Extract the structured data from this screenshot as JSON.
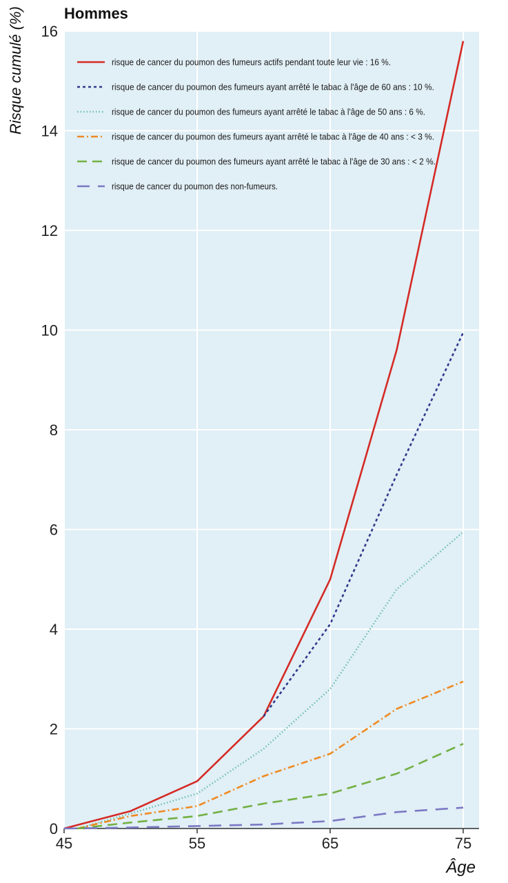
{
  "chart_data": {
    "type": "line",
    "title": "Hommes",
    "xlabel": "Âge",
    "ylabel": "Risque cumulé (%)",
    "xlim": [
      45,
      75
    ],
    "ylim": [
      0,
      16
    ],
    "x_ticks": [
      "45",
      "55",
      "65",
      "75"
    ],
    "y_ticks": [
      "0",
      "2",
      "4",
      "6",
      "8",
      "10",
      "12",
      "14",
      "16"
    ],
    "x_tick_values": [
      45,
      55,
      65,
      75
    ],
    "y_tick_values": [
      0,
      2,
      4,
      6,
      8,
      10,
      12,
      14,
      16
    ],
    "grid": true,
    "legend_position": "top-left",
    "background_color": "#e1eff6",
    "series": [
      {
        "name": "risque de cancer du poumon des fumeurs actifs pendant toute leur vie : 16 %.",
        "color": "#d42a25",
        "dash": "solid",
        "points": [
          [
            45,
            0
          ],
          [
            50,
            0.35
          ],
          [
            55,
            0.95
          ],
          [
            60,
            2.25
          ],
          [
            65,
            5.0
          ],
          [
            70,
            9.6
          ],
          [
            75,
            15.8
          ]
        ]
      },
      {
        "name": "risque de cancer du poumon des fumeurs ayant arrêté le tabac à l'âge de 60 ans : 10 %.",
        "color": "#2e3a8c",
        "dash": "short",
        "points": [
          [
            60,
            2.25
          ],
          [
            65,
            4.1
          ],
          [
            70,
            7.1
          ],
          [
            75,
            9.95
          ]
        ]
      },
      {
        "name": "risque de cancer du poumon des fumeurs ayant arrêté le tabac à l'âge de 50 ans : 6 %.",
        "color": "#6cbfb4",
        "dash": "dotted",
        "points": [
          [
            46,
            0
          ],
          [
            50,
            0.3
          ],
          [
            55,
            0.7
          ],
          [
            60,
            1.6
          ],
          [
            65,
            2.8
          ],
          [
            70,
            4.8
          ],
          [
            75,
            5.95
          ]
        ]
      },
      {
        "name": "risque de cancer du poumon des fumeurs ayant arrêté le tabac à l'âge de 40 ans : < 3 %.",
        "color": "#ee8a22",
        "dash": "dashdot",
        "points": [
          [
            46,
            0
          ],
          [
            50,
            0.25
          ],
          [
            55,
            0.45
          ],
          [
            60,
            1.05
          ],
          [
            65,
            1.5
          ],
          [
            70,
            2.4
          ],
          [
            75,
            2.95
          ]
        ]
      },
      {
        "name": "risque de cancer du poumon des fumeurs ayant arrêté le tabac à l'âge de 30 ans : < 2 %.",
        "color": "#72b043",
        "dash": "long",
        "points": [
          [
            46,
            0
          ],
          [
            50,
            0.12
          ],
          [
            55,
            0.25
          ],
          [
            60,
            0.5
          ],
          [
            65,
            0.7
          ],
          [
            70,
            1.1
          ],
          [
            75,
            1.7
          ]
        ]
      },
      {
        "name": "risque de cancer du poumon des non-fumeurs.",
        "color": "#7b78c4",
        "dash": "longgap",
        "points": [
          [
            45,
            0
          ],
          [
            50,
            0.02
          ],
          [
            55,
            0.05
          ],
          [
            60,
            0.08
          ],
          [
            65,
            0.15
          ],
          [
            70,
            0.33
          ],
          [
            75,
            0.42
          ]
        ]
      }
    ]
  }
}
